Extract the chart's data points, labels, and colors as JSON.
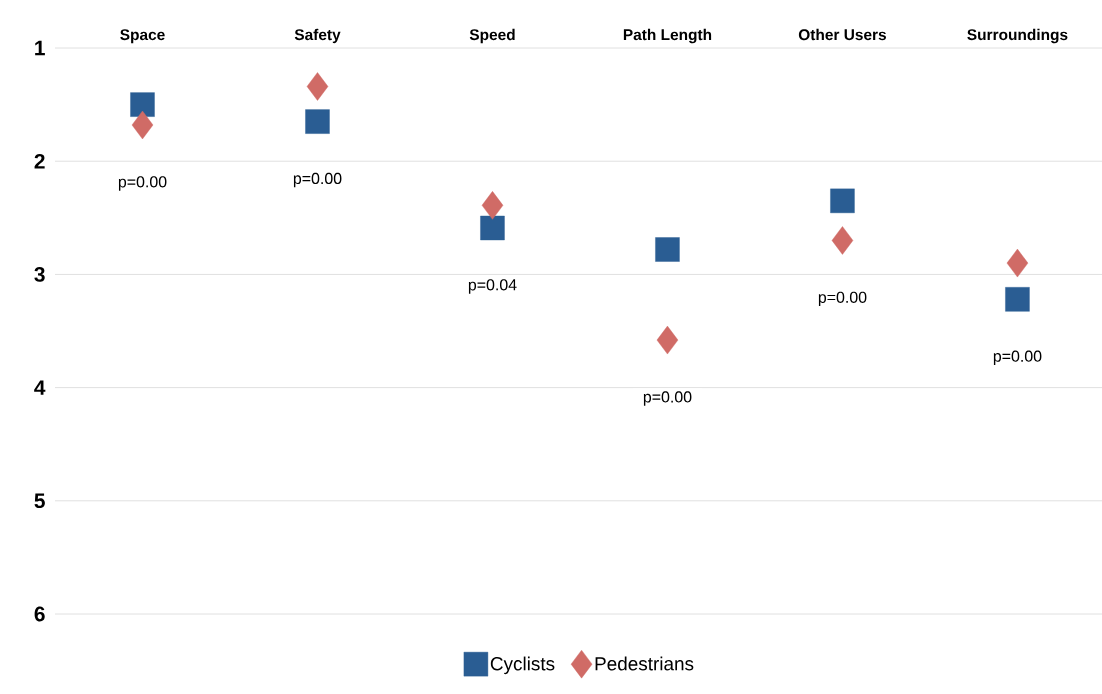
{
  "chart_data": {
    "type": "scatter",
    "categories": [
      "Space",
      "Safety",
      "Speed",
      "Path Length",
      "Other Users",
      "Surroundings"
    ],
    "series": [
      {
        "name": "Cyclists",
        "color": "#2a5d93",
        "marker": "square",
        "values": [
          1.5,
          1.65,
          2.59,
          2.78,
          2.35,
          3.22
        ]
      },
      {
        "name": "Pedestrians",
        "color": "#d06b66",
        "marker": "diamond",
        "values": [
          1.68,
          1.34,
          2.39,
          3.58,
          2.7,
          2.9
        ]
      }
    ],
    "ylim": [
      6,
      1
    ],
    "yticks": [
      1,
      2,
      3,
      4,
      5,
      6
    ],
    "grid": "y",
    "legend": "bottom",
    "annotations": [
      "p=0.00",
      "p=0.00",
      "p=0.04",
      "p=0.00",
      "p=0.00",
      "p=0.00"
    ]
  }
}
